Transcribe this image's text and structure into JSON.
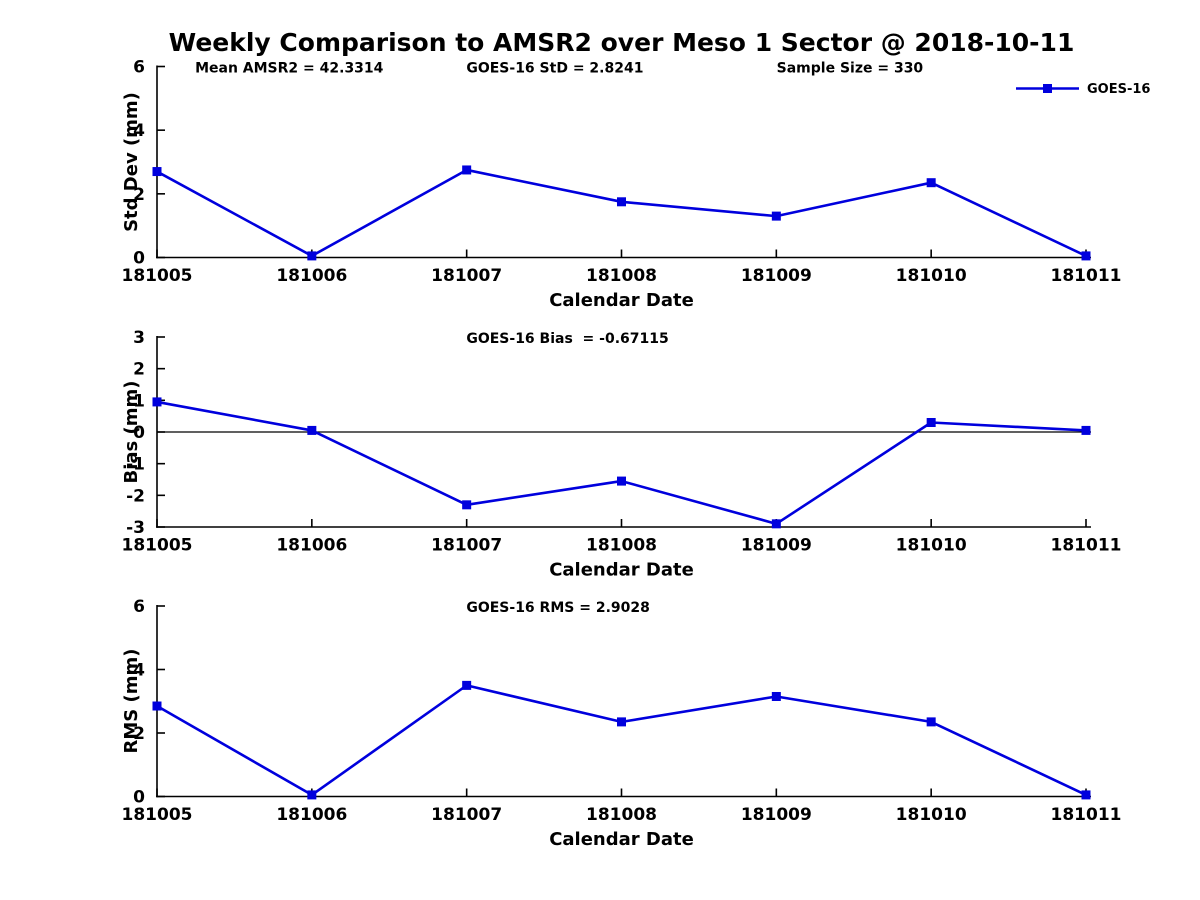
{
  "title": "Weekly Comparison to AMSR2 over Meso 1 Sector @ 2018-10-11",
  "legend": {
    "label": "GOES-16"
  },
  "colors": {
    "line": "#0000DD",
    "axis": "#000000",
    "text": "#000000",
    "background": "#FFFFFF"
  },
  "chart_data": [
    {
      "type": "line",
      "series_name": "GOES-16",
      "annotations": [
        "Mean AMSR2 = 42.3314",
        "GOES-16 StD = 2.8241",
        "Sample Size = 330"
      ],
      "x": [
        "181005",
        "181006",
        "181007",
        "181008",
        "181009",
        "181010",
        "181011"
      ],
      "values": [
        2.7,
        0.05,
        2.75,
        1.75,
        1.3,
        2.35,
        0.05
      ],
      "xlabel": "Calendar Date",
      "ylabel": "Std Dev (mm)",
      "ylim": [
        0,
        6
      ],
      "yticks": [
        0,
        2,
        4,
        6
      ],
      "zero_line": false,
      "legend_visible": true,
      "grid": false
    },
    {
      "type": "line",
      "series_name": "GOES-16",
      "annotations": [
        "GOES-16 Bias  = -0.67115"
      ],
      "x": [
        "181005",
        "181006",
        "181007",
        "181008",
        "181009",
        "181010",
        "181011"
      ],
      "values": [
        0.95,
        0.05,
        -2.3,
        -1.55,
        -2.9,
        0.3,
        0.05
      ],
      "xlabel": "Calendar Date",
      "ylabel": "Bias (mm)",
      "ylim": [
        -3,
        3
      ],
      "yticks": [
        -3,
        -2,
        -1,
        0,
        1,
        2,
        3
      ],
      "zero_line": true,
      "legend_visible": false,
      "grid": false
    },
    {
      "type": "line",
      "series_name": "GOES-16",
      "annotations": [
        "GOES-16 RMS = 2.9028"
      ],
      "x": [
        "181005",
        "181006",
        "181007",
        "181008",
        "181009",
        "181010",
        "181011"
      ],
      "values": [
        2.85,
        0.05,
        3.5,
        2.35,
        3.15,
        2.35,
        0.05
      ],
      "xlabel": "Calendar Date",
      "ylabel": "RMS (mm)",
      "ylim": [
        0,
        6
      ],
      "yticks": [
        0,
        2,
        4,
        6
      ],
      "zero_line": false,
      "legend_visible": false,
      "grid": false
    }
  ]
}
